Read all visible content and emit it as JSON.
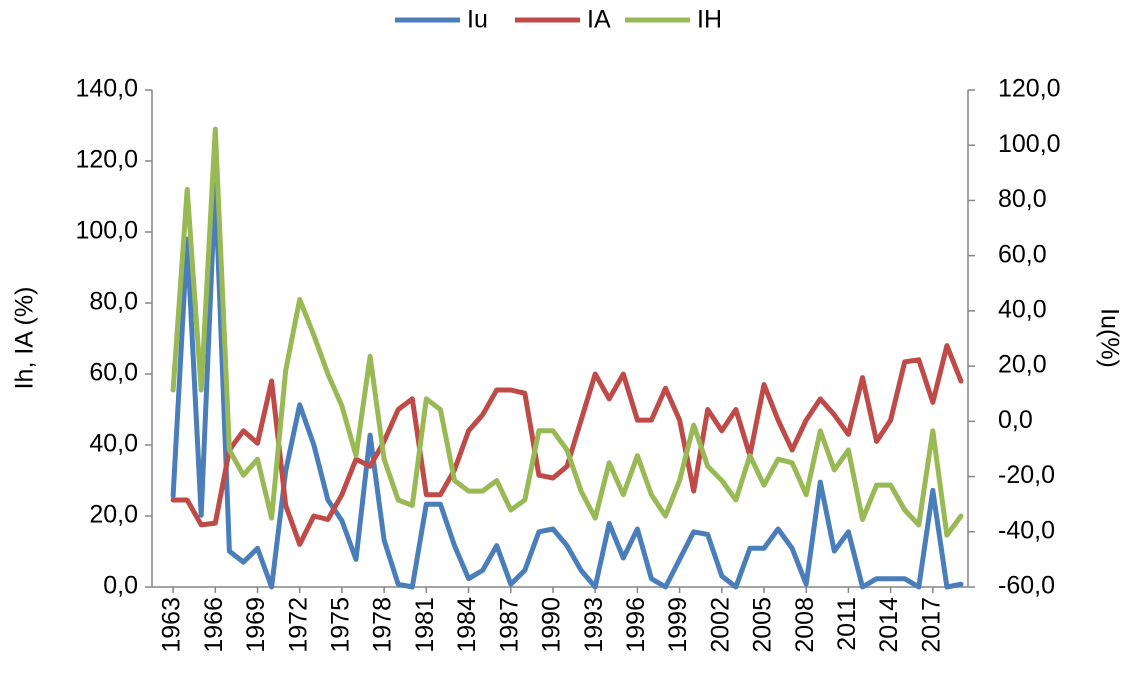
{
  "chart_data": {
    "type": "line",
    "x": [
      1963,
      1964,
      1965,
      1966,
      1967,
      1968,
      1969,
      1970,
      1971,
      1972,
      1973,
      1974,
      1975,
      1976,
      1977,
      1978,
      1979,
      1980,
      1981,
      1982,
      1983,
      1984,
      1985,
      1986,
      1987,
      1988,
      1989,
      1990,
      1991,
      1992,
      1993,
      1994,
      1995,
      1996,
      1997,
      1998,
      1999,
      2000,
      2001,
      2002,
      2003,
      2004,
      2005,
      2006,
      2007,
      2008,
      2009,
      2010,
      2011,
      2012,
      2013,
      2014,
      2015,
      2016,
      2017,
      2018,
      2019
    ],
    "xlim": [
      1961.5,
      2019.5
    ],
    "xticks": [
      1963,
      1966,
      1969,
      1972,
      1975,
      1978,
      1981,
      1984,
      1987,
      1990,
      1993,
      1996,
      1999,
      2002,
      2005,
      2008,
      2011,
      2014,
      2017
    ],
    "y_label": "Ih, IA (%)",
    "y2_label": "Iu(%)",
    "ylim": [
      0,
      140
    ],
    "yticks": [
      {
        "value": 0,
        "label": "0,0"
      },
      {
        "value": 20,
        "label": "20,0"
      },
      {
        "value": 40,
        "label": "40,0"
      },
      {
        "value": 60,
        "label": "60,0"
      },
      {
        "value": 80,
        "label": "80,0"
      },
      {
        "value": 100,
        "label": "100,0"
      },
      {
        "value": 120,
        "label": "120,0"
      },
      {
        "value": 140,
        "label": "140,0"
      }
    ],
    "y2lim": [
      -60,
      120
    ],
    "y2ticks": [
      {
        "value": -60,
        "label": "-60,0"
      },
      {
        "value": -40,
        "label": "-40,0"
      },
      {
        "value": -20,
        "label": "-20,0"
      },
      {
        "value": 0,
        "label": "0,0"
      },
      {
        "value": 20,
        "label": "20,0"
      },
      {
        "value": 40,
        "label": "40,0"
      },
      {
        "value": 60,
        "label": "60,0"
      },
      {
        "value": 80,
        "label": "80,0"
      },
      {
        "value": 100,
        "label": "100,0"
      },
      {
        "value": 120,
        "label": "120,0"
      }
    ],
    "legend": "top",
    "series": [
      {
        "name": "Iu",
        "color": "#4a7ebb",
        "axis": "y2",
        "values": [
          -27,
          66,
          -34,
          86,
          -47,
          -51,
          -46,
          -60,
          -18,
          6,
          -8.5,
          -28.5,
          -36,
          -50,
          -5,
          -43,
          -59,
          -60,
          -30,
          -30,
          -45,
          -57,
          -54,
          -45,
          -59,
          -54,
          -40,
          -39,
          -45,
          -54,
          -60,
          -37,
          -49.5,
          -39,
          -57,
          -60,
          -50,
          -40,
          -41,
          -56,
          -60,
          -46,
          -46,
          -39,
          -46,
          -59,
          -22,
          -47,
          -40,
          -60,
          -57,
          -57,
          -57,
          -60,
          -25,
          -60,
          -59
        ]
      },
      {
        "name": "IA",
        "color": "#be4b48",
        "values": [
          24.5,
          24.5,
          17.5,
          18,
          38.6,
          44,
          40.5,
          58,
          23,
          12,
          20,
          19,
          26,
          36,
          34,
          41,
          50,
          53,
          26,
          26,
          33,
          44,
          48.5,
          55.5,
          55.5,
          54.6,
          31.5,
          30.7,
          34,
          47,
          60,
          53,
          60,
          47,
          47,
          56,
          47,
          27,
          50,
          44,
          50,
          37,
          57,
          47,
          38.6,
          47,
          53,
          48.5,
          43,
          59,
          41,
          47,
          63.4,
          64,
          52,
          68,
          58
        ]
      },
      {
        "name": "IH",
        "color": "#98b954",
        "values": [
          55.5,
          112,
          55.5,
          129,
          38.6,
          31.5,
          36,
          19.4,
          61,
          81,
          71,
          60,
          51,
          37,
          65,
          36,
          24.5,
          23,
          53,
          50,
          30,
          27,
          27,
          30,
          21.7,
          24.5,
          44,
          44,
          38.6,
          27,
          19.4,
          35,
          26,
          37,
          26,
          20,
          30,
          45.6,
          34,
          30,
          24.5,
          37,
          28.7,
          36,
          35,
          26,
          44,
          33,
          38.6,
          19,
          28.7,
          28.7,
          21.7,
          17.5,
          44,
          14.6,
          20
        ]
      }
    ]
  }
}
